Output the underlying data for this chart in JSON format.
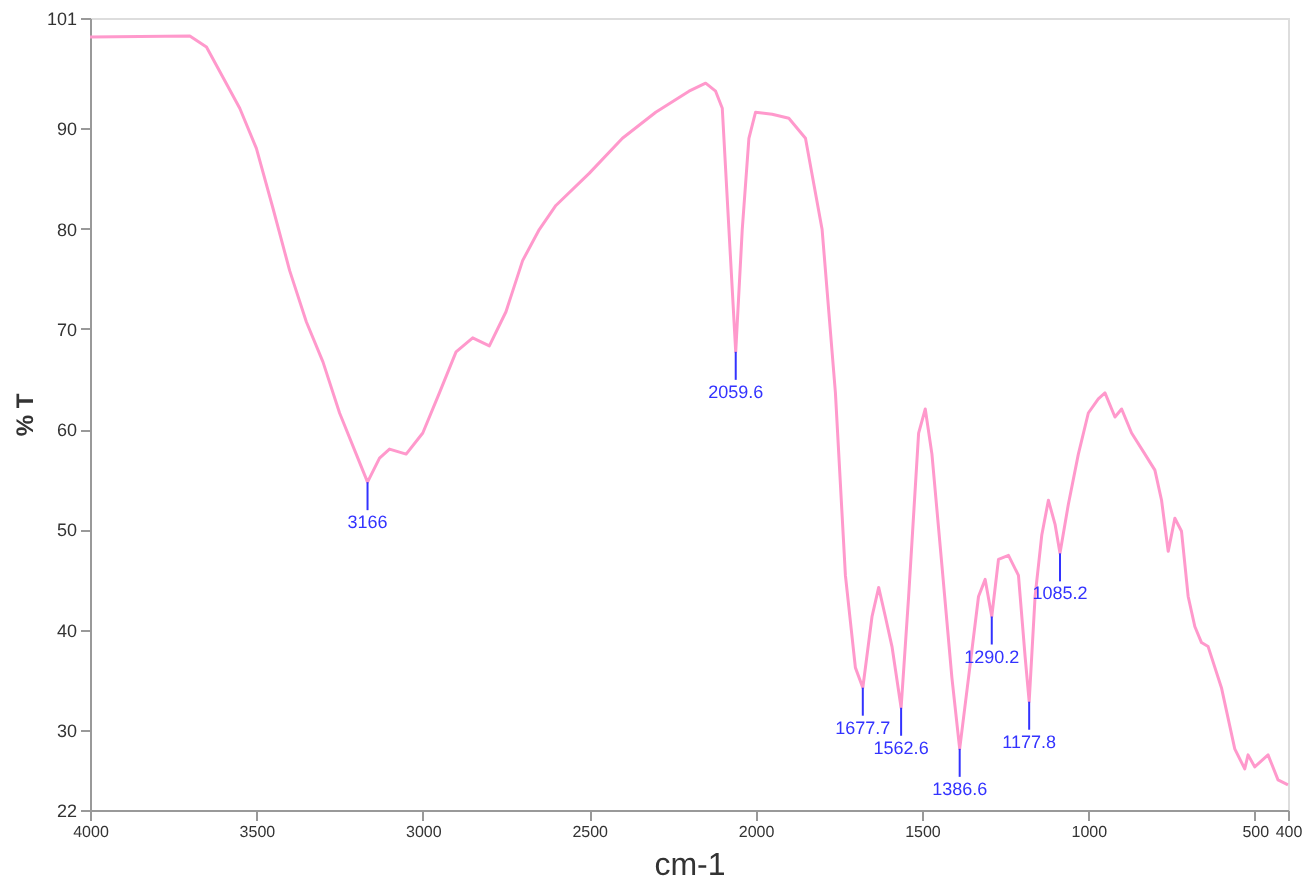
{
  "chart_data": {
    "type": "line",
    "xlabel": "cm-1",
    "ylabel": "% T",
    "xlim": [
      4000,
      400
    ],
    "xticks": [
      4000,
      3500,
      3000,
      2500,
      2000,
      1500,
      1000,
      500,
      400
    ],
    "ylim": [
      22,
      101
    ],
    "yticks": [
      22,
      30,
      40,
      50,
      60,
      70,
      80,
      90,
      101
    ],
    "grid": false,
    "line_style": "solid",
    "marker": "none",
    "series": [
      {
        "color": "#ff99cc",
        "x": [
          4000,
          3700,
          3650,
          3550,
          3500,
          3450,
          3400,
          3350,
          3300,
          3250,
          3200,
          3166,
          3130,
          3100,
          3050,
          3000,
          2950,
          2900,
          2850,
          2800,
          2750,
          2700,
          2650,
          2600,
          2500,
          2400,
          2300,
          2200,
          2150,
          2120,
          2100,
          2080,
          2059.6,
          2040,
          2020,
          2000,
          1950,
          1900,
          1850,
          1800,
          1760,
          1730,
          1700,
          1677.7,
          1650,
          1630,
          1610,
          1590,
          1562.6,
          1540,
          1510,
          1490,
          1470,
          1440,
          1410,
          1386.6,
          1360,
          1330,
          1310,
          1290.2,
          1270,
          1240,
          1210,
          1190,
          1177.8,
          1160,
          1140,
          1120,
          1100,
          1085.2,
          1060,
          1030,
          1000,
          970,
          950,
          920,
          900,
          870,
          830,
          800,
          780,
          760,
          740,
          720,
          700,
          680,
          660,
          640,
          600,
          560,
          530,
          520,
          500,
          460,
          430,
          400
        ],
        "values": [
          99.1,
          99.2,
          98.1,
          92,
          88,
          82,
          75.8,
          70.7,
          66.7,
          61.6,
          57.5,
          54.7,
          57.1,
          58,
          57.5,
          59.6,
          63.6,
          67.7,
          69.1,
          68.3,
          71.7,
          76.8,
          79.9,
          82.3,
          85.5,
          89,
          91.6,
          93.7,
          94.5,
          93.7,
          92,
          79.9,
          67.7,
          79.9,
          89,
          91.6,
          91.4,
          91,
          89,
          79.9,
          63.6,
          45.4,
          36.2,
          34.2,
          41.3,
          44.2,
          41.3,
          38.3,
          32.2,
          43.3,
          59.6,
          62,
          57.5,
          46.4,
          35.2,
          28.1,
          35.2,
          43.3,
          45,
          41.3,
          47,
          47.4,
          45.4,
          37.3,
          32.8,
          43.3,
          49.4,
          52.9,
          50.5,
          47.6,
          52.5,
          57.5,
          61.6,
          63,
          63.6,
          61.2,
          62,
          59.6,
          57.5,
          55.9,
          52.9,
          47.8,
          51.1,
          49.8,
          43.3,
          40.3,
          38.7,
          38.3,
          34.2,
          28.1,
          26.1,
          27.5,
          26.3,
          27.5,
          25,
          24.5
        ]
      }
    ],
    "annotations": [
      {
        "text": "3166",
        "x": 3166,
        "y": 54.7
      },
      {
        "text": "2059.6",
        "x": 2059.6,
        "y": 67.7
      },
      {
        "text": "1677.7",
        "x": 1677.7,
        "y": 34.2
      },
      {
        "text": "1562.6",
        "x": 1562.6,
        "y": 32.2
      },
      {
        "text": "1386.6",
        "x": 1386.6,
        "y": 28.1
      },
      {
        "text": "1290.2",
        "x": 1290.2,
        "y": 41.3
      },
      {
        "text": "1177.8",
        "x": 1177.8,
        "y": 32.8
      },
      {
        "text": "1085.2",
        "x": 1085.2,
        "y": 47.6
      }
    ]
  }
}
